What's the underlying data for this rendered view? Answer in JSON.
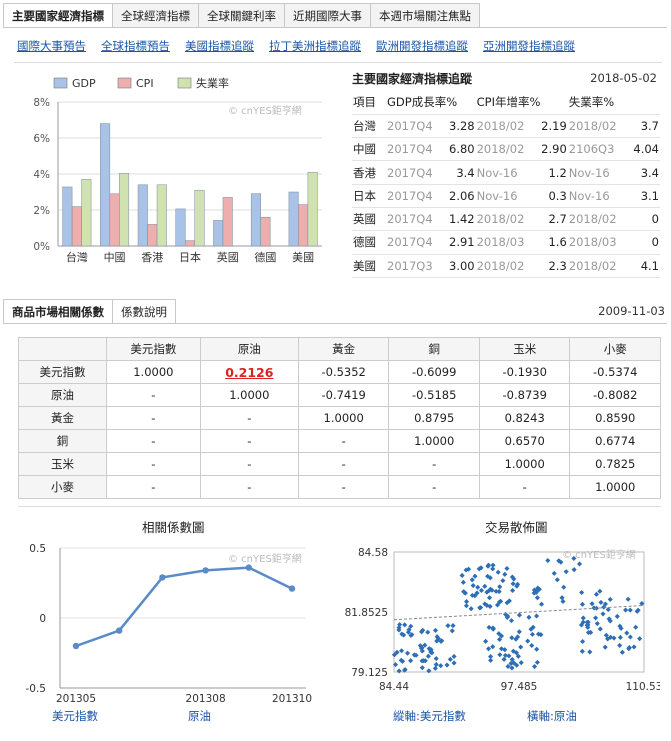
{
  "top_tabs": [
    "主要國家經濟指標",
    "全球經濟指標",
    "全球關鍵利率",
    "近期國際大事",
    "本週市場關注焦點"
  ],
  "links": [
    "國際大事預告",
    "全球指標預告",
    "美國指標追蹤",
    "拉丁美洲指標追蹤",
    "歐洲開發指標追蹤",
    "亞洲開發指標追蹤"
  ],
  "watermark": "cnYES鉅亨網",
  "chart_data": [
    {
      "type": "bar",
      "categories": [
        "台灣",
        "中國",
        "香港",
        "日本",
        "英國",
        "德國",
        "美國"
      ],
      "series": [
        {
          "name": "GDP",
          "color": "#a9c3e6",
          "values": [
            3.28,
            6.8,
            3.4,
            2.06,
            1.42,
            2.91,
            3.0
          ]
        },
        {
          "name": "CPI",
          "color": "#eeaeae",
          "values": [
            2.19,
            2.9,
            1.2,
            0.3,
            2.7,
            1.6,
            2.3
          ]
        },
        {
          "name": "失業率",
          "color": "#cfe2b0",
          "values": [
            3.7,
            4.04,
            3.4,
            3.1,
            0,
            0,
            4.1
          ]
        }
      ],
      "y_ticks": [
        "8%",
        "6%",
        "4%",
        "2%",
        "0%"
      ],
      "ylim": [
        0,
        8
      ],
      "legend_position": "top"
    },
    {
      "type": "line",
      "title": "相關係數圖",
      "x": [
        "201305",
        "201306",
        "201307",
        "201308",
        "201309",
        "201310"
      ],
      "x_tick_labels": [
        "201305",
        "201308",
        "201310"
      ],
      "values": [
        -0.2,
        -0.09,
        0.29,
        0.34,
        0.36,
        0.21
      ],
      "y_ticks": [
        "0.5",
        "0",
        "-0.5"
      ],
      "ylim": [
        -0.5,
        0.5
      ],
      "color": "#5a8ac8"
    },
    {
      "type": "scatter",
      "title": "交易散佈圖",
      "x_ticks": [
        "84.44",
        "97.485",
        "110.53"
      ],
      "y_ticks": [
        "84.58",
        "81.8525",
        "79.125"
      ],
      "xlim": [
        84.44,
        110.53
      ],
      "ylim": [
        79.125,
        84.58
      ],
      "trend": [
        [
          84.44,
          81.5
        ],
        [
          110.53,
          82.15
        ]
      ],
      "color": "#2e6eb5",
      "clusters": [
        {
          "x": [
            84.44,
            91.0
          ],
          "y": [
            79.125,
            81.3
          ],
          "n": 60
        },
        {
          "x": [
            91.5,
            97.5
          ],
          "y": [
            82.0,
            84.0
          ],
          "n": 55
        },
        {
          "x": [
            94.0,
            100.0
          ],
          "y": [
            79.3,
            81.8
          ],
          "n": 50
        },
        {
          "x": [
            99.0,
            104.0
          ],
          "y": [
            82.2,
            84.3
          ],
          "n": 20
        },
        {
          "x": [
            104.0,
            110.53
          ],
          "y": [
            80.0,
            82.8
          ],
          "n": 55
        }
      ]
    }
  ],
  "tracking": {
    "title": "主要國家經濟指標追蹤",
    "date": "2018-05-02",
    "header": [
      "項目",
      "GDP成長率%",
      "CPI年增率%",
      "失業率%"
    ],
    "rows": [
      [
        "台灣",
        "2017Q4",
        "3.28",
        "2018/02",
        "2.19",
        "2018/02",
        "3.7"
      ],
      [
        "中國",
        "2017Q4",
        "6.80",
        "2018/02",
        "2.90",
        "2106Q3",
        "4.04"
      ],
      [
        "香港",
        "2017Q4",
        "3.4",
        "Nov-16",
        "1.2",
        "Nov-16",
        "3.4"
      ],
      [
        "日本",
        "2017Q4",
        "2.06",
        "Nov-16",
        "0.3",
        "Nov-16",
        "3.1"
      ],
      [
        "英國",
        "2017Q4",
        "1.42",
        "2018/02",
        "2.7",
        "2018/02",
        "0"
      ],
      [
        "德國",
        "2017Q4",
        "2.91",
        "2018/03",
        "1.6",
        "2018/03",
        "0"
      ],
      [
        "美國",
        "2017Q3",
        "3.00",
        "2018/02",
        "2.3",
        "2018/02",
        "4.1"
      ]
    ]
  },
  "section2": {
    "tabs": [
      "商品市場相關係數",
      "係數說明"
    ],
    "date": "2009-11-03",
    "columns": [
      "",
      "美元指數",
      "原油",
      "黃金",
      "銅",
      "玉米",
      "小麥"
    ],
    "rows": [
      [
        "美元指數",
        "1.0000",
        "0.2126",
        "-0.5352",
        "-0.6099",
        "-0.1930",
        "-0.5374"
      ],
      [
        "原油",
        "-",
        "1.0000",
        "-0.7419",
        "-0.5185",
        "-0.8739",
        "-0.8082"
      ],
      [
        "黃金",
        "-",
        "-",
        "1.0000",
        "0.8795",
        "0.8243",
        "0.8590"
      ],
      [
        "銅",
        "-",
        "-",
        "-",
        "1.0000",
        "0.6570",
        "0.6774"
      ],
      [
        "玉米",
        "-",
        "-",
        "-",
        "-",
        "1.0000",
        "0.7825"
      ],
      [
        "小麥",
        "-",
        "-",
        "-",
        "-",
        "-",
        "1.0000"
      ]
    ],
    "line_footer": [
      "美元指數",
      "原油"
    ],
    "scatter_footer": [
      "縱軸:美元指數",
      "橫軸:原油"
    ]
  }
}
